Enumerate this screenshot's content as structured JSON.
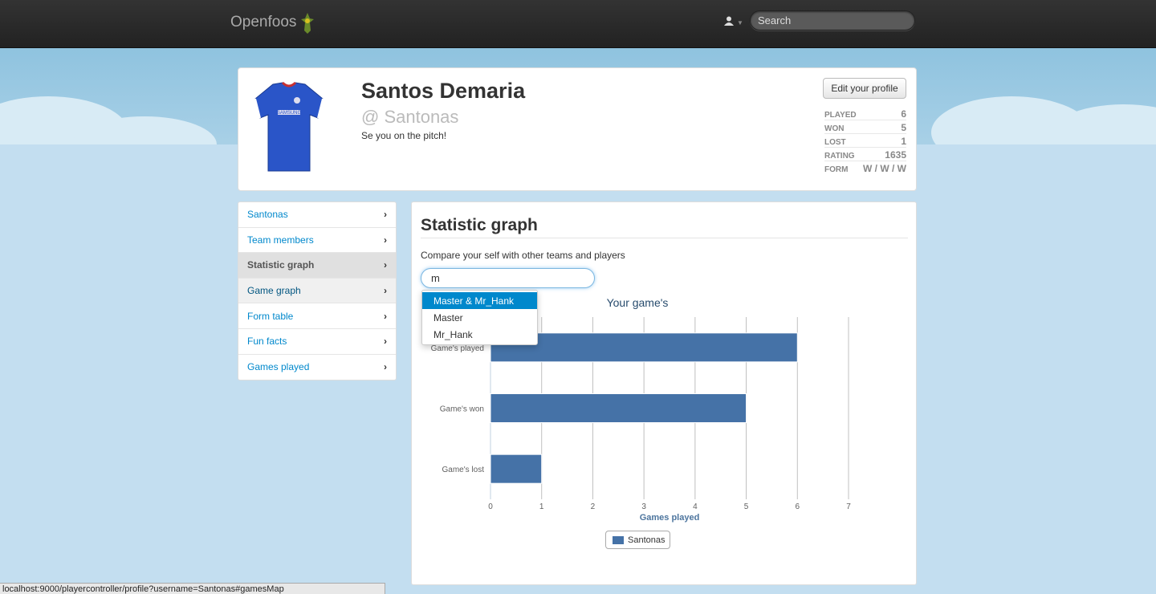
{
  "navbar": {
    "brand": "Openfoos",
    "search_placeholder": "Search"
  },
  "profile": {
    "name": "Santos Demaria",
    "handle": "@ Santonas",
    "bio": "Se you on the pitch!",
    "edit_label": "Edit your profile",
    "jersey_text": "SAMSUNG",
    "stats": [
      {
        "label": "PLAYED",
        "value": "6"
      },
      {
        "label": "WON",
        "value": "5"
      },
      {
        "label": "LOST",
        "value": "1"
      },
      {
        "label": "RATING",
        "value": "1635"
      },
      {
        "label": "FORM",
        "value": "W / W / W"
      }
    ]
  },
  "sidenav": {
    "items": [
      {
        "label": "Santonas"
      },
      {
        "label": "Team members"
      },
      {
        "label": "Statistic graph"
      },
      {
        "label": "Game graph"
      },
      {
        "label": "Form table"
      },
      {
        "label": "Fun facts"
      },
      {
        "label": "Games played"
      }
    ],
    "active": "Statistic graph"
  },
  "panel": {
    "title": "Statistic graph",
    "description": "Compare your self with other teams and players",
    "input_value": "m",
    "suggestions": [
      "Master & Mr_Hank",
      "Master",
      "Mr_Hank"
    ]
  },
  "chart_data": {
    "type": "bar",
    "orientation": "horizontal",
    "title": "Your game's",
    "categories": [
      "Game's played",
      "Game's won",
      "Game's lost"
    ],
    "series": [
      {
        "name": "Santonas",
        "values": [
          6,
          5,
          1
        ],
        "color": "#4572a7"
      }
    ],
    "xlabel": "Games played",
    "xlim": [
      0,
      7
    ],
    "xticks": [
      "0",
      "1",
      "2",
      "3",
      "4",
      "5",
      "6",
      "7"
    ],
    "grid": true,
    "legend": "bottom-center"
  },
  "status_bar": "localhost:9000/playercontroller/profile?username=Santonas#gamesMap",
  "colors": {
    "link": "#0088cc",
    "bar": "#4572a7",
    "navbar": "#222222",
    "sky": "#c1ddec"
  }
}
